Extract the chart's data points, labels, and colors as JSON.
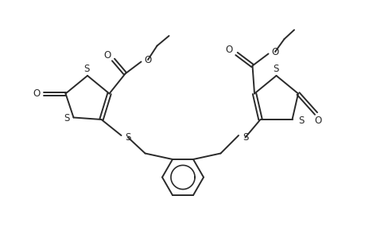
{
  "bg_color": "#ffffff",
  "line_color": "#2a2a2a",
  "line_width": 1.4,
  "fig_width": 4.6,
  "fig_height": 3.0,
  "dpi": 100,
  "xlim": [
    0,
    9.2
  ],
  "ylim": [
    0,
    6.0
  ]
}
